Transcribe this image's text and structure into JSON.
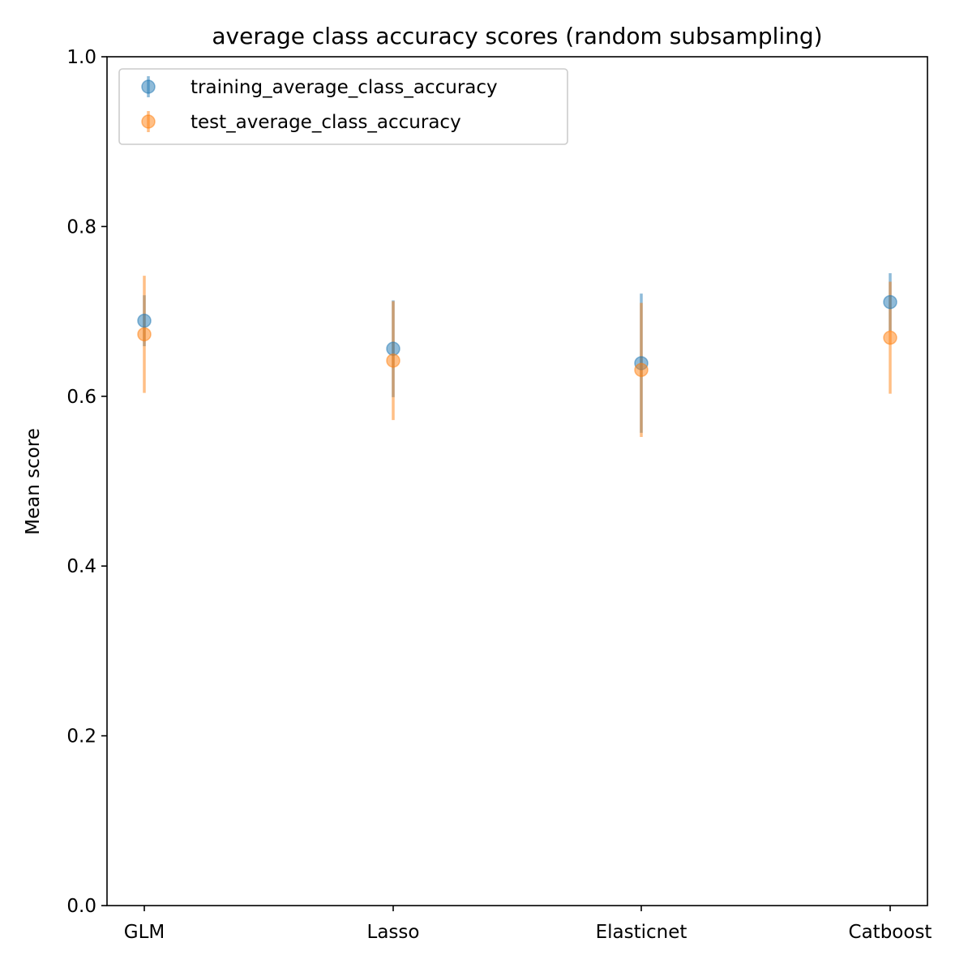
{
  "chart_data": {
    "type": "errorbar",
    "title": "average class accuracy scores (random subsampling)",
    "xlabel": "",
    "ylabel": "Mean score",
    "ylim": [
      0.0,
      1.0
    ],
    "yticks": [
      0.0,
      0.2,
      0.4,
      0.6,
      0.8,
      1.0
    ],
    "ytick_labels": [
      "0.0",
      "0.2",
      "0.4",
      "0.6",
      "0.8",
      "1.0"
    ],
    "categories": [
      "GLM",
      "Lasso",
      "Elasticnet",
      "Catboost"
    ],
    "grid": false,
    "legend_position": "top-left",
    "series": [
      {
        "name": "training_average_class_accuracy",
        "color": "#1f77b4",
        "values": [
          0.689,
          0.656,
          0.639,
          0.711
        ],
        "errors": [
          0.03,
          0.057,
          0.082,
          0.034
        ]
      },
      {
        "name": "test_average_class_accuracy",
        "color": "#ff7f0e",
        "values": [
          0.673,
          0.642,
          0.631,
          0.669
        ],
        "errors": [
          0.069,
          0.07,
          0.079,
          0.066
        ]
      }
    ]
  }
}
